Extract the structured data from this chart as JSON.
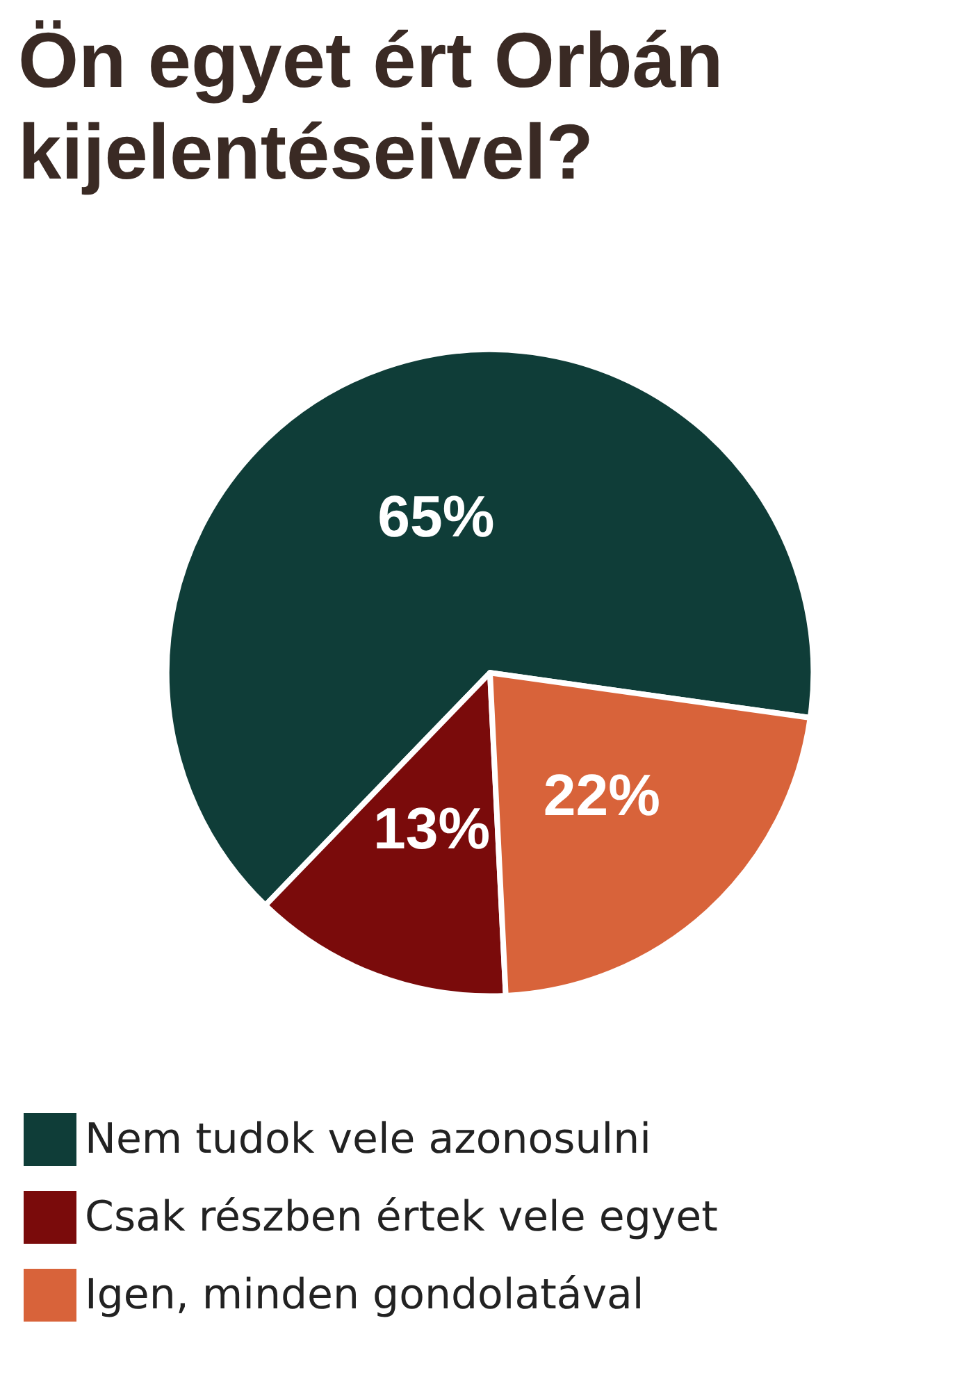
{
  "chart_data": {
    "type": "pie",
    "title": "Ön egyet ért Orbán kijelentéseivel?",
    "categories": [
      "Nem tudok vele azonosulni",
      "Csak részben értek vele egyet",
      "Igen, minden gondolatával"
    ],
    "values": [
      65,
      13,
      22
    ],
    "colors": [
      "#0f3d38",
      "#7a0b0b",
      "#d8633a"
    ],
    "value_labels": [
      "65%",
      "13%",
      "22%"
    ],
    "legend": "bottom"
  }
}
